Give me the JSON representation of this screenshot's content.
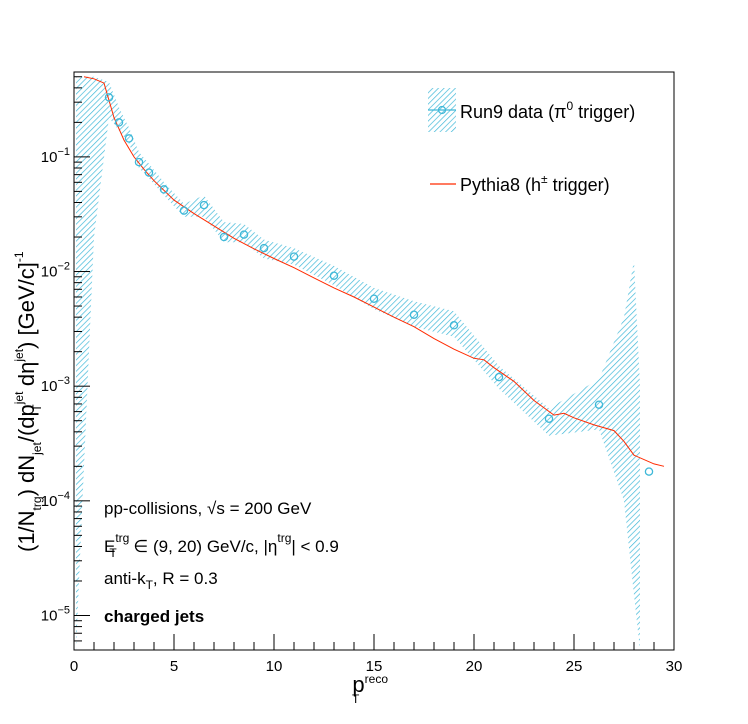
{
  "colors": {
    "data": "#3fb8d8",
    "model": "#ff2a00",
    "axis": "#000000"
  },
  "chart_data": {
    "type": "scatter",
    "xlabel": "p_T^reco",
    "ylabel": "(1/N_trg) dN_jet/(dp_T^jet dη^jet) [GeV/c]^-1",
    "xlim": [
      0,
      30
    ],
    "ylim": [
      5e-06,
      0.55
    ],
    "yscale": "log",
    "x_ticks": [
      0,
      5,
      10,
      15,
      20,
      25,
      30
    ],
    "y_ticks": [
      "10^-5",
      "10^-4",
      "10^-3",
      "10^-2",
      "10^-1"
    ],
    "series": [
      {
        "name": "Run9 data (π⁰ trigger)",
        "kind": "markers-with-band",
        "x": [
          1.75,
          2.25,
          2.75,
          3.25,
          3.75,
          4.5,
          5.5,
          6.5,
          7.5,
          8.5,
          9.5,
          11.0,
          13.0,
          15.0,
          17.0,
          19.0,
          21.25,
          23.75,
          26.25,
          28.75
        ],
        "y": [
          0.33,
          0.2,
          0.145,
          0.09,
          0.073,
          0.052,
          0.034,
          0.038,
          0.02,
          0.021,
          0.016,
          0.0135,
          0.0092,
          0.0058,
          0.0042,
          0.0034,
          0.0012,
          0.00052,
          0.00069,
          0.00018
        ],
        "band_x": [
          0.1,
          1.0,
          1.75,
          2.25,
          2.75,
          3.25,
          3.75,
          4.5,
          5.5,
          6.5,
          7.5,
          8.5,
          9.5,
          11.0,
          13.0,
          15.0,
          17.0,
          19.0,
          21.25,
          23.75,
          26.25,
          27.5,
          28.0,
          28.3
        ],
        "band_low": [
          5e-06,
          0.02,
          0.22,
          0.17,
          0.13,
          0.08,
          0.065,
          0.046,
          0.03,
          0.03,
          0.018,
          0.018,
          0.013,
          0.0115,
          0.0076,
          0.0047,
          0.0033,
          0.0027,
          0.00095,
          0.00037,
          0.00042,
          0.0001,
          1.5e-05,
          5e-06
        ],
        "band_high": [
          0.5,
          0.5,
          0.45,
          0.27,
          0.18,
          0.11,
          0.087,
          0.06,
          0.039,
          0.046,
          0.027,
          0.026,
          0.019,
          0.016,
          0.0112,
          0.0072,
          0.0055,
          0.0045,
          0.0015,
          0.00064,
          0.00115,
          0.004,
          0.0125,
          0.001
        ]
      },
      {
        "name": "Pythia8 (h± trigger)",
        "kind": "line",
        "x": [
          0.5,
          1.0,
          1.5,
          2.0,
          2.5,
          3.0,
          3.5,
          4.0,
          5.0,
          6.0,
          7.0,
          8.0,
          9.0,
          10.0,
          11.0,
          12.0,
          13.0,
          14.0,
          15.0,
          16.0,
          17.0,
          18.0,
          19.0,
          20.0,
          20.5,
          21.0,
          22.0,
          23.0,
          24.0,
          24.5,
          25.0,
          26.0,
          27.0,
          27.5,
          28.0,
          29.0,
          29.5
        ],
        "y": [
          0.5,
          0.48,
          0.44,
          0.22,
          0.14,
          0.1,
          0.078,
          0.062,
          0.042,
          0.032,
          0.025,
          0.0195,
          0.0158,
          0.013,
          0.0108,
          0.0088,
          0.0072,
          0.006,
          0.0049,
          0.004,
          0.0033,
          0.0026,
          0.0021,
          0.00175,
          0.0017,
          0.00145,
          0.0011,
          0.00075,
          0.00056,
          0.00058,
          0.00053,
          0.00046,
          0.00041,
          0.00033,
          0.00025,
          0.00021,
          0.0002
        ]
      }
    ],
    "legend_position": "top-right",
    "annotations": [
      "pp-collisions, √s = 200 GeV",
      "E_T^trg ∈ (9, 20) GeV/c, |η^trg| < 0.9",
      "anti-k_T, R = 0.3",
      "charged jets"
    ]
  },
  "texts": {
    "legend_data": "Run9 data (π",
    "legend_data_sup": "0",
    "legend_data_end": " trigger)",
    "legend_model": "Pythia8 (h",
    "legend_model_sup": "±",
    "legend_model_end": " trigger)",
    "ann1_a": "pp-collisions, ",
    "ann1_b": "√",
    "ann1_c": "s = 200 GeV",
    "ann2_a": "E",
    "ann2_sup": "trg",
    "ann2_sub": "T",
    "ann2_b": " ∈ (9, 20) GeV/c, |η",
    "ann2_sup2": "trg",
    "ann2_c": "| < 0.9",
    "ann3_a": "anti-k",
    "ann3_sub": "T",
    "ann3_b": ", R = 0.3",
    "ann4": "charged jets",
    "xtitle_main": "p",
    "xtitle_sup": "reco",
    "xtitle_sub": "T",
    "ytitle_1": "(1/N",
    "ytitle_1_sub": "trg",
    "ytitle_2": ") dN",
    "ytitle_2_sub": "jet",
    "ytitle_3": "/(dp",
    "ytitle_3_sup": "jet",
    "ytitle_3_sub": "T",
    "ytitle_4": " dη",
    "ytitle_4_sup": "jet",
    "ytitle_5": ") [GeV/c]",
    "ytitle_5_sup": "-1"
  }
}
